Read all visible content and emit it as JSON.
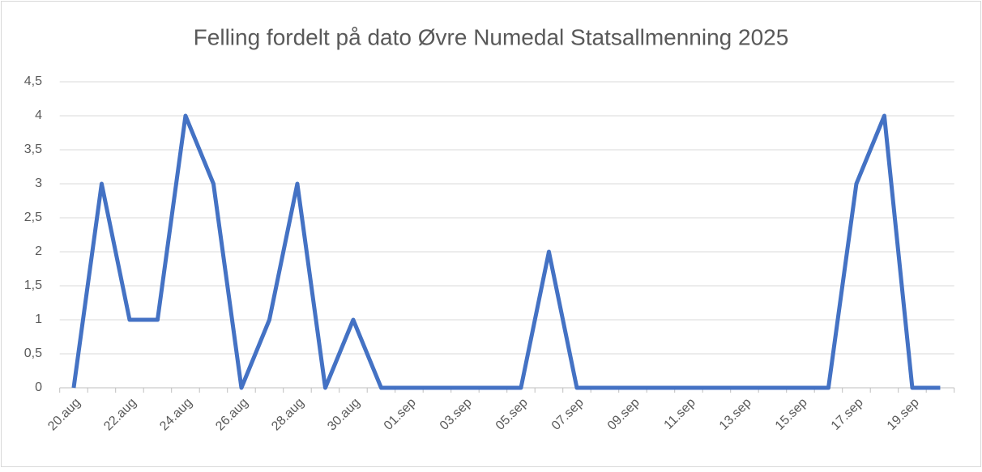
{
  "chart_data": {
    "type": "line",
    "title": "Felling fordelt på dato Øvre Numedal Statsallmenning 2025",
    "categories": [
      "20.aug",
      null,
      "22.aug",
      null,
      "24.aug",
      null,
      "26.aug",
      null,
      "28.aug",
      null,
      "30.aug",
      null,
      "01.sep",
      null,
      "03.sep",
      null,
      "05.sep",
      null,
      "07.sep",
      null,
      "09.sep",
      null,
      "11.sep",
      null,
      "13.sep",
      null,
      "15.sep",
      null,
      "17.sep",
      null,
      "19.sep",
      null
    ],
    "series": [
      {
        "color": "#4472c4",
        "values": [
          0,
          3,
          1,
          1,
          4,
          3,
          0,
          1,
          3,
          0,
          1,
          0,
          0,
          0,
          0,
          0,
          0,
          2,
          0,
          0,
          0,
          0,
          0,
          0,
          0,
          0,
          0,
          0,
          3,
          4,
          0,
          0
        ]
      }
    ],
    "ylim": [
      0,
      4.5
    ],
    "yticks": [
      0,
      {
        "value": 0.5,
        "label": "0,5"
      },
      1,
      {
        "value": 1.5,
        "label": "1,5"
      },
      2,
      {
        "value": 2.5,
        "label": "2,5"
      },
      3,
      {
        "value": 3.5,
        "label": "3,5"
      },
      4,
      {
        "value": 4.5,
        "label": "4,5"
      }
    ],
    "grid": true
  }
}
